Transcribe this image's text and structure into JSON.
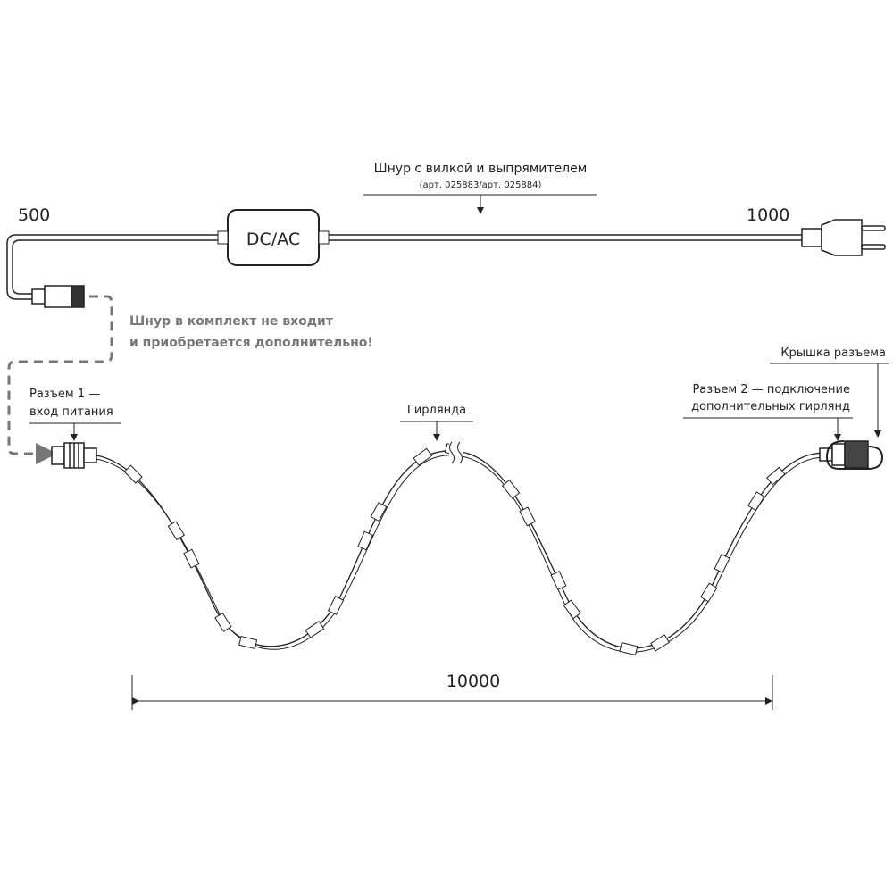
{
  "cord": {
    "title": "Шнур с вилкой и выпрямителем",
    "article": "(арт. 025883/арт. 025884)",
    "box_label": "DC/AC",
    "length_left": "500",
    "length_right": "1000"
  },
  "note": {
    "line1": "Шнур в комплект не входит",
    "line2": "и приобретается дополнительно!"
  },
  "connector1": {
    "line1": "Разъем 1 —",
    "line2": "вход питания"
  },
  "garland": {
    "label": "Гирлянда",
    "length": "10000"
  },
  "connector2": {
    "line1": "Разъем 2 — подключение",
    "line2": "дополнительных гирлянд"
  },
  "cap": {
    "label": "Крышка разъема"
  },
  "colors": {
    "line": "#222222",
    "dashed": "#777777"
  }
}
